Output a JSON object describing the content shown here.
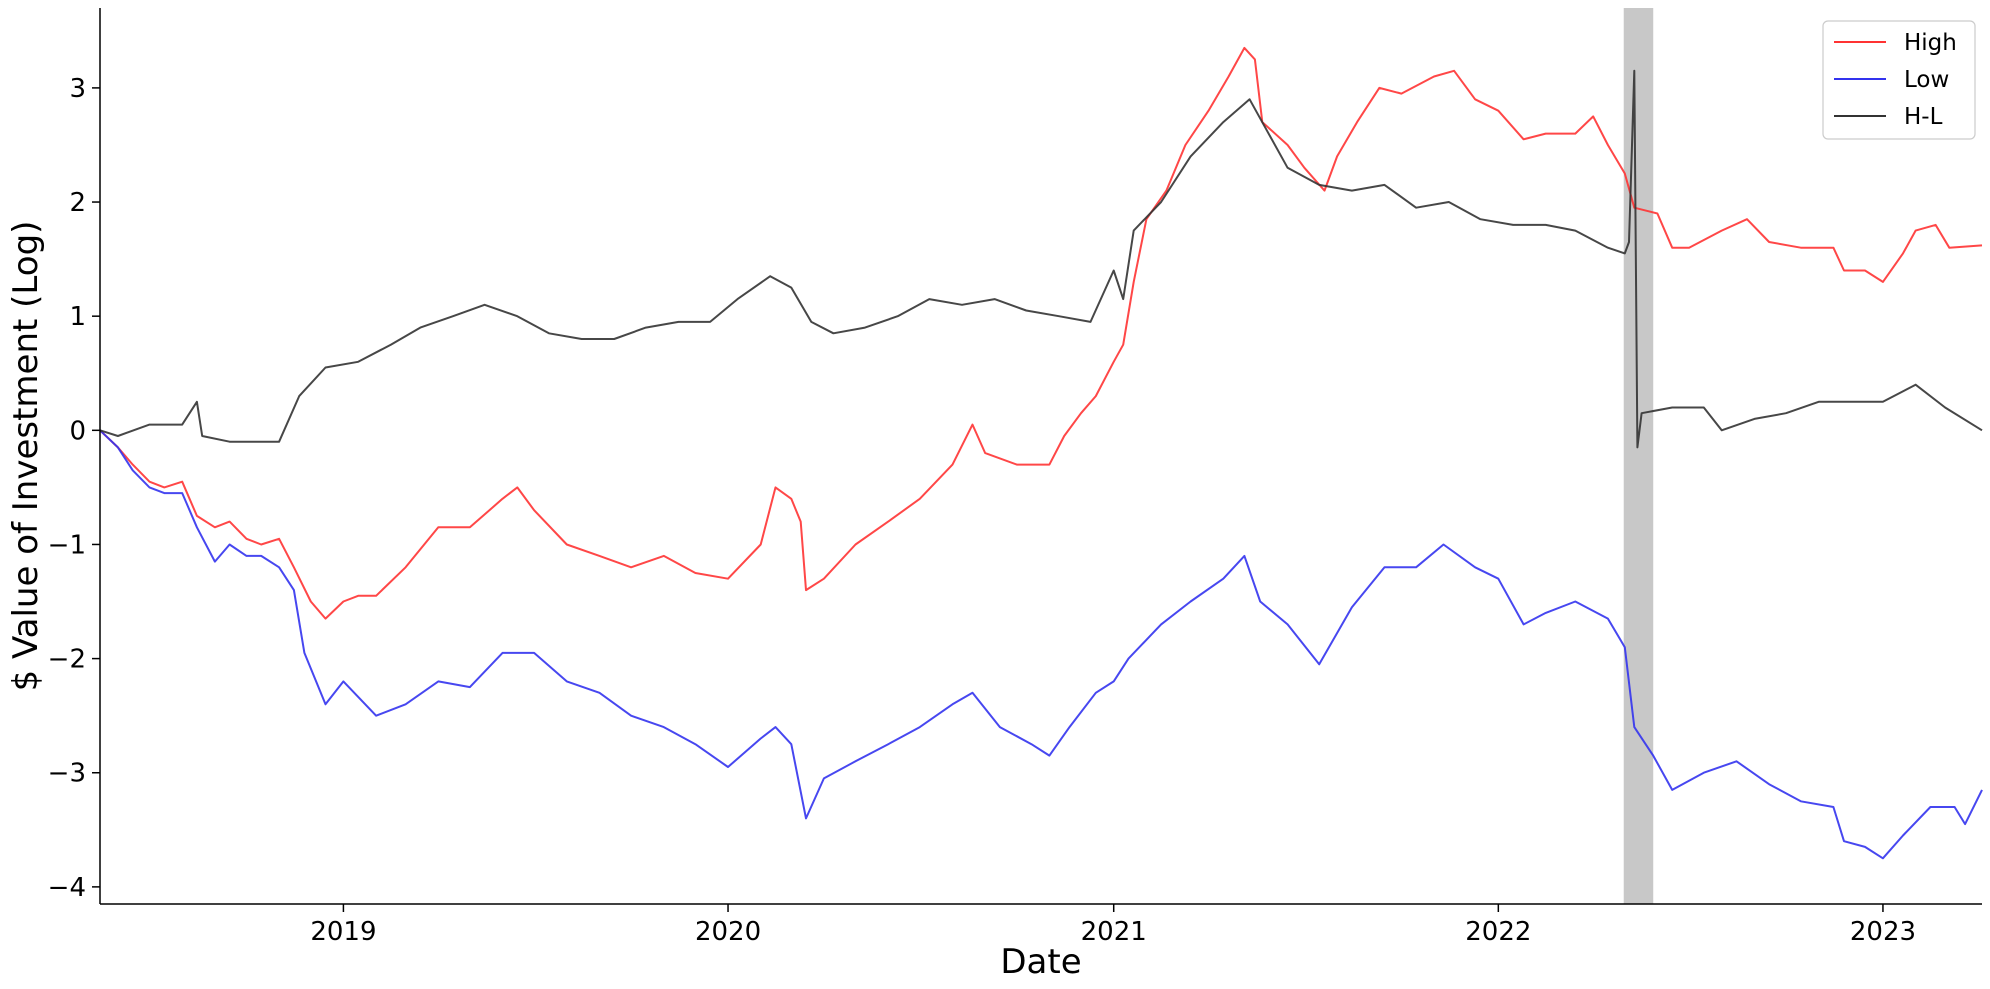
{
  "chart_data": {
    "type": "line",
    "title": "",
    "xlabel": "Date",
    "ylabel": "$ Value of Investment (Log)",
    "x_ticks": [
      "2019",
      "2020",
      "2021",
      "2022",
      "2023"
    ],
    "y_ticks": [
      "−4",
      "−3",
      "−2",
      "−1",
      "0",
      "1",
      "2",
      "3"
    ],
    "xlim": [
      "2018-05-15",
      "2023-04-05"
    ],
    "ylim": [
      -4.15,
      3.7
    ],
    "grid": false,
    "legend_position": "top-right",
    "shaded_region": {
      "start": "2022-04-30",
      "end": "2022-05-28",
      "color": "#c8c8c8"
    },
    "series": [
      {
        "name": "High",
        "color": "#ff3333",
        "points": [
          [
            "2018-05-15",
            0.0
          ],
          [
            "2018-06-01",
            -0.15
          ],
          [
            "2018-06-15",
            -0.3
          ],
          [
            "2018-07-01",
            -0.45
          ],
          [
            "2018-07-15",
            -0.5
          ],
          [
            "2018-08-01",
            -0.45
          ],
          [
            "2018-08-15",
            -0.75
          ],
          [
            "2018-09-01",
            -0.85
          ],
          [
            "2018-09-15",
            -0.8
          ],
          [
            "2018-10-01",
            -0.95
          ],
          [
            "2018-10-15",
            -1.0
          ],
          [
            "2018-11-01",
            -0.95
          ],
          [
            "2018-11-15",
            -1.2
          ],
          [
            "2018-12-01",
            -1.5
          ],
          [
            "2018-12-15",
            -1.65
          ],
          [
            "2019-01-01",
            -1.5
          ],
          [
            "2019-01-15",
            -1.45
          ],
          [
            "2019-02-01",
            -1.45
          ],
          [
            "2019-03-01",
            -1.2
          ],
          [
            "2019-04-01",
            -0.85
          ],
          [
            "2019-05-01",
            -0.85
          ],
          [
            "2019-06-01",
            -0.6
          ],
          [
            "2019-06-15",
            -0.5
          ],
          [
            "2019-07-01",
            -0.7
          ],
          [
            "2019-08-01",
            -1.0
          ],
          [
            "2019-09-01",
            -1.1
          ],
          [
            "2019-10-01",
            -1.2
          ],
          [
            "2019-11-01",
            -1.1
          ],
          [
            "2019-12-01",
            -1.25
          ],
          [
            "2020-01-01",
            -1.3
          ],
          [
            "2020-02-01",
            -1.0
          ],
          [
            "2020-02-15",
            -0.5
          ],
          [
            "2020-03-01",
            -0.6
          ],
          [
            "2020-03-10",
            -0.8
          ],
          [
            "2020-03-15",
            -1.4
          ],
          [
            "2020-04-01",
            -1.3
          ],
          [
            "2020-05-01",
            -1.0
          ],
          [
            "2020-06-01",
            -0.8
          ],
          [
            "2020-07-01",
            -0.6
          ],
          [
            "2020-08-01",
            -0.3
          ],
          [
            "2020-08-20",
            0.05
          ],
          [
            "2020-09-01",
            -0.2
          ],
          [
            "2020-10-01",
            -0.3
          ],
          [
            "2020-11-01",
            -0.3
          ],
          [
            "2020-11-15",
            -0.05
          ],
          [
            "2020-12-01",
            0.15
          ],
          [
            "2020-12-15",
            0.3
          ],
          [
            "2021-01-01",
            0.6
          ],
          [
            "2021-01-10",
            0.75
          ],
          [
            "2021-01-20",
            1.3
          ],
          [
            "2021-02-01",
            1.85
          ],
          [
            "2021-02-20",
            2.1
          ],
          [
            "2021-03-10",
            2.5
          ],
          [
            "2021-04-01",
            2.8
          ],
          [
            "2021-04-20",
            3.1
          ],
          [
            "2021-05-05",
            3.35
          ],
          [
            "2021-05-15",
            3.25
          ],
          [
            "2021-05-22",
            2.7
          ],
          [
            "2021-06-15",
            2.5
          ],
          [
            "2021-07-01",
            2.3
          ],
          [
            "2021-07-20",
            2.1
          ],
          [
            "2021-08-01",
            2.4
          ],
          [
            "2021-08-20",
            2.7
          ],
          [
            "2021-09-10",
            3.0
          ],
          [
            "2021-10-01",
            2.95
          ],
          [
            "2021-11-01",
            3.1
          ],
          [
            "2021-11-20",
            3.15
          ],
          [
            "2021-12-10",
            2.9
          ],
          [
            "2022-01-01",
            2.8
          ],
          [
            "2022-01-25",
            2.55
          ],
          [
            "2022-02-15",
            2.6
          ],
          [
            "2022-03-15",
            2.6
          ],
          [
            "2022-04-01",
            2.75
          ],
          [
            "2022-04-15",
            2.5
          ],
          [
            "2022-05-01",
            2.25
          ],
          [
            "2022-05-10",
            1.95
          ],
          [
            "2022-06-01",
            1.9
          ],
          [
            "2022-06-15",
            1.6
          ],
          [
            "2022-07-01",
            1.6
          ],
          [
            "2022-08-01",
            1.75
          ],
          [
            "2022-08-25",
            1.85
          ],
          [
            "2022-09-15",
            1.65
          ],
          [
            "2022-10-15",
            1.6
          ],
          [
            "2022-11-15",
            1.6
          ],
          [
            "2022-11-25",
            1.4
          ],
          [
            "2022-12-15",
            1.4
          ],
          [
            "2023-01-01",
            1.3
          ],
          [
            "2023-01-20",
            1.55
          ],
          [
            "2023-02-01",
            1.75
          ],
          [
            "2023-02-20",
            1.8
          ],
          [
            "2023-03-05",
            1.6
          ],
          [
            "2023-04-05",
            1.62
          ]
        ]
      },
      {
        "name": "Low",
        "color": "#3333ee",
        "points": [
          [
            "2018-05-15",
            0.0
          ],
          [
            "2018-06-01",
            -0.15
          ],
          [
            "2018-06-15",
            -0.35
          ],
          [
            "2018-07-01",
            -0.5
          ],
          [
            "2018-07-15",
            -0.55
          ],
          [
            "2018-08-01",
            -0.55
          ],
          [
            "2018-08-15",
            -0.85
          ],
          [
            "2018-09-01",
            -1.15
          ],
          [
            "2018-09-15",
            -1.0
          ],
          [
            "2018-10-01",
            -1.1
          ],
          [
            "2018-10-15",
            -1.1
          ],
          [
            "2018-11-01",
            -1.2
          ],
          [
            "2018-11-15",
            -1.4
          ],
          [
            "2018-11-25",
            -1.95
          ],
          [
            "2018-12-15",
            -2.4
          ],
          [
            "2019-01-01",
            -2.2
          ],
          [
            "2019-02-01",
            -2.5
          ],
          [
            "2019-03-01",
            -2.4
          ],
          [
            "2019-04-01",
            -2.2
          ],
          [
            "2019-05-01",
            -2.25
          ],
          [
            "2019-06-01",
            -1.95
          ],
          [
            "2019-07-01",
            -1.95
          ],
          [
            "2019-08-01",
            -2.2
          ],
          [
            "2019-09-01",
            -2.3
          ],
          [
            "2019-10-01",
            -2.5
          ],
          [
            "2019-11-01",
            -2.6
          ],
          [
            "2019-12-01",
            -2.75
          ],
          [
            "2020-01-01",
            -2.95
          ],
          [
            "2020-02-01",
            -2.7
          ],
          [
            "2020-02-15",
            -2.6
          ],
          [
            "2020-03-01",
            -2.75
          ],
          [
            "2020-03-15",
            -3.4
          ],
          [
            "2020-04-01",
            -3.05
          ],
          [
            "2020-05-01",
            -2.9
          ],
          [
            "2020-06-01",
            -2.75
          ],
          [
            "2020-07-01",
            -2.6
          ],
          [
            "2020-08-01",
            -2.4
          ],
          [
            "2020-08-20",
            -2.3
          ],
          [
            "2020-09-15",
            -2.6
          ],
          [
            "2020-10-15",
            -2.75
          ],
          [
            "2020-11-01",
            -2.85
          ],
          [
            "2020-11-20",
            -2.6
          ],
          [
            "2020-12-15",
            -2.3
          ],
          [
            "2021-01-01",
            -2.2
          ],
          [
            "2021-01-15",
            -2.0
          ],
          [
            "2021-02-15",
            -1.7
          ],
          [
            "2021-03-15",
            -1.5
          ],
          [
            "2021-04-15",
            -1.3
          ],
          [
            "2021-05-05",
            -1.1
          ],
          [
            "2021-05-20",
            -1.5
          ],
          [
            "2021-06-15",
            -1.7
          ],
          [
            "2021-07-15",
            -2.05
          ],
          [
            "2021-08-15",
            -1.55
          ],
          [
            "2021-09-15",
            -1.2
          ],
          [
            "2021-10-15",
            -1.2
          ],
          [
            "2021-11-10",
            -1.0
          ],
          [
            "2021-12-10",
            -1.2
          ],
          [
            "2022-01-01",
            -1.3
          ],
          [
            "2022-01-25",
            -1.7
          ],
          [
            "2022-02-15",
            -1.6
          ],
          [
            "2022-03-15",
            -1.5
          ],
          [
            "2022-04-15",
            -1.65
          ],
          [
            "2022-05-01",
            -1.9
          ],
          [
            "2022-05-10",
            -2.6
          ],
          [
            "2022-05-28",
            -2.85
          ],
          [
            "2022-06-15",
            -3.15
          ],
          [
            "2022-07-15",
            -3.0
          ],
          [
            "2022-08-15",
            -2.9
          ],
          [
            "2022-09-15",
            -3.1
          ],
          [
            "2022-10-15",
            -3.25
          ],
          [
            "2022-11-15",
            -3.3
          ],
          [
            "2022-11-25",
            -3.6
          ],
          [
            "2022-12-15",
            -3.65
          ],
          [
            "2023-01-01",
            -3.75
          ],
          [
            "2023-01-20",
            -3.55
          ],
          [
            "2023-02-15",
            -3.3
          ],
          [
            "2023-03-10",
            -3.3
          ],
          [
            "2023-03-20",
            -3.45
          ],
          [
            "2023-04-05",
            -3.15
          ]
        ]
      },
      {
        "name": "H-L",
        "color": "#333333",
        "points": [
          [
            "2018-05-15",
            0.0
          ],
          [
            "2018-06-01",
            -0.05
          ],
          [
            "2018-07-01",
            0.05
          ],
          [
            "2018-08-01",
            0.05
          ],
          [
            "2018-08-15",
            0.25
          ],
          [
            "2018-08-20",
            -0.05
          ],
          [
            "2018-09-15",
            -0.1
          ],
          [
            "2018-10-15",
            -0.1
          ],
          [
            "2018-11-01",
            -0.1
          ],
          [
            "2018-11-20",
            0.3
          ],
          [
            "2018-12-15",
            0.55
          ],
          [
            "2019-01-15",
            0.6
          ],
          [
            "2019-02-15",
            0.75
          ],
          [
            "2019-03-15",
            0.9
          ],
          [
            "2019-04-15",
            1.0
          ],
          [
            "2019-05-15",
            1.1
          ],
          [
            "2019-06-15",
            1.0
          ],
          [
            "2019-07-15",
            0.85
          ],
          [
            "2019-08-15",
            0.8
          ],
          [
            "2019-09-15",
            0.8
          ],
          [
            "2019-10-15",
            0.9
          ],
          [
            "2019-11-15",
            0.95
          ],
          [
            "2019-12-15",
            0.95
          ],
          [
            "2020-01-10",
            1.15
          ],
          [
            "2020-02-10",
            1.35
          ],
          [
            "2020-03-01",
            1.25
          ],
          [
            "2020-03-20",
            0.95
          ],
          [
            "2020-04-10",
            0.85
          ],
          [
            "2020-05-10",
            0.9
          ],
          [
            "2020-06-10",
            1.0
          ],
          [
            "2020-07-10",
            1.15
          ],
          [
            "2020-08-10",
            1.1
          ],
          [
            "2020-09-10",
            1.15
          ],
          [
            "2020-10-10",
            1.05
          ],
          [
            "2020-11-10",
            1.0
          ],
          [
            "2020-12-10",
            0.95
          ],
          [
            "2021-01-01",
            1.4
          ],
          [
            "2021-01-10",
            1.15
          ],
          [
            "2021-01-20",
            1.75
          ],
          [
            "2021-02-15",
            2.0
          ],
          [
            "2021-03-15",
            2.4
          ],
          [
            "2021-04-15",
            2.7
          ],
          [
            "2021-05-10",
            2.9
          ],
          [
            "2021-05-25",
            2.65
          ],
          [
            "2021-06-15",
            2.3
          ],
          [
            "2021-07-15",
            2.15
          ],
          [
            "2021-08-15",
            2.1
          ],
          [
            "2021-09-15",
            2.15
          ],
          [
            "2021-10-15",
            1.95
          ],
          [
            "2021-11-15",
            2.0
          ],
          [
            "2021-12-15",
            1.85
          ],
          [
            "2022-01-15",
            1.8
          ],
          [
            "2022-02-15",
            1.8
          ],
          [
            "2022-03-15",
            1.75
          ],
          [
            "2022-04-15",
            1.6
          ],
          [
            "2022-05-01",
            1.55
          ],
          [
            "2022-05-05",
            1.65
          ],
          [
            "2022-05-10",
            3.15
          ],
          [
            "2022-05-13",
            -0.15
          ],
          [
            "2022-05-17",
            0.15
          ],
          [
            "2022-06-15",
            0.2
          ],
          [
            "2022-07-15",
            0.2
          ],
          [
            "2022-08-01",
            0.0
          ],
          [
            "2022-09-01",
            0.1
          ],
          [
            "2022-10-01",
            0.15
          ],
          [
            "2022-11-01",
            0.25
          ],
          [
            "2022-12-01",
            0.25
          ],
          [
            "2023-01-01",
            0.25
          ],
          [
            "2023-02-01",
            0.4
          ],
          [
            "2023-03-01",
            0.2
          ],
          [
            "2023-04-05",
            0.0
          ]
        ]
      }
    ]
  }
}
